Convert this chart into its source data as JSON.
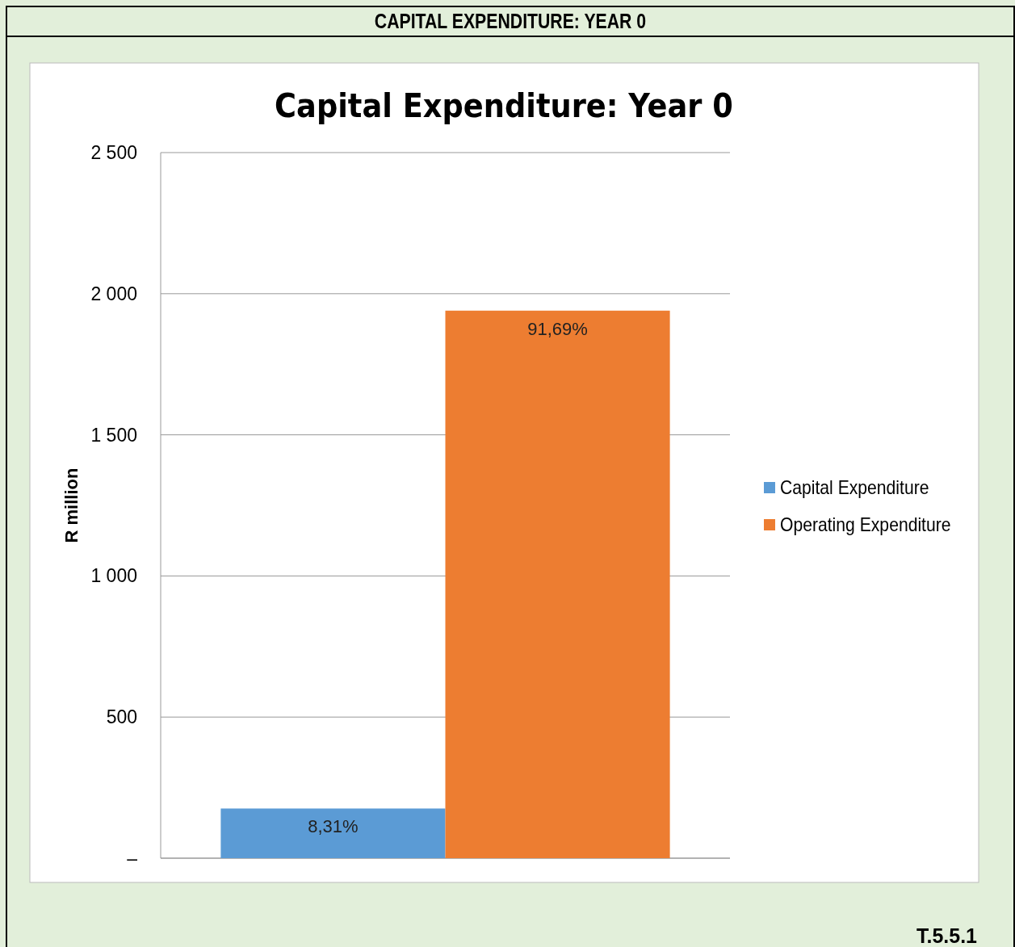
{
  "chart_data": {
    "type": "bar",
    "title": "CAPITAL EXPENDITURE: YEAR 0",
    "subtitle": "Capital Expenditure: Year 0",
    "ylabel": "R million",
    "categories": [
      null
    ],
    "series": [
      {
        "name": "Capital Expenditure",
        "color": "#5b9bd5",
        "values": [
          176
        ]
      },
      {
        "name": "Operating Expenditure",
        "color": "#ed7d31",
        "values": [
          1940
        ]
      }
    ],
    "ylim": [
      0,
      2500
    ],
    "yticks": [
      {
        "value": 0,
        "label": "–"
      },
      {
        "value": 500,
        "label": "500"
      },
      {
        "value": 1000,
        "label": "1 000"
      },
      {
        "value": 1500,
        "label": "1 500"
      },
      {
        "value": 2000,
        "label": "2 000"
      },
      {
        "value": 2500,
        "label": "2 500"
      }
    ],
    "grid": "y",
    "legend": "right",
    "annotations": [
      {
        "text": "8,31%",
        "y": 176
      },
      {
        "text": "91,69%",
        "y": 1940
      },
      "T.5.5.1"
    ]
  }
}
